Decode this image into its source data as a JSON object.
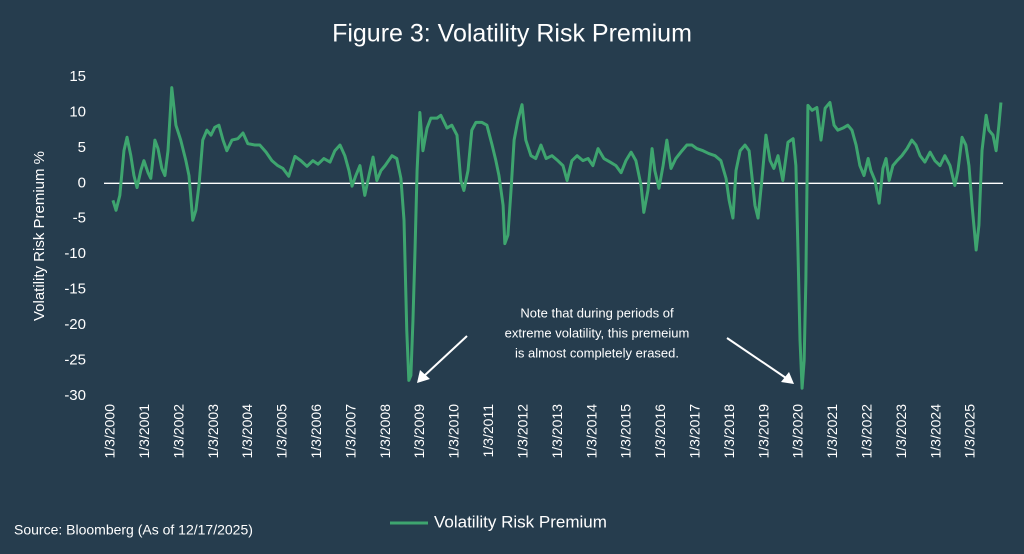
{
  "chart_data": {
    "type": "line",
    "title": "Figure 3: Volatility Risk Premium",
    "y_label": "Volatility Risk Premium %",
    "annotation": [
      "Note that during periods of",
      "extreme volatility, this premeium",
      "is almost completely erased."
    ],
    "source": "Source: Bloomberg (As of 12/17/2025)",
    "xlim": [
      1999.8,
      2025.93
    ],
    "ylim": [
      -30,
      15
    ],
    "yticks": [
      -30,
      -25,
      -20,
      -15,
      -10,
      -5,
      0,
      5,
      10,
      15
    ],
    "xticks": [
      {
        "value": 2000,
        "label": "1/3/2000"
      },
      {
        "value": 2001,
        "label": "1/3/2001"
      },
      {
        "value": 2002,
        "label": "1/3/2002"
      },
      {
        "value": 2003,
        "label": "1/3/2003"
      },
      {
        "value": 2004,
        "label": "1/3/2004"
      },
      {
        "value": 2005,
        "label": "1/3/2005"
      },
      {
        "value": 2006,
        "label": "1/3/2006"
      },
      {
        "value": 2007,
        "label": "1/3/2007"
      },
      {
        "value": 2008,
        "label": "1/3/2008"
      },
      {
        "value": 2009,
        "label": "1/3/2009"
      },
      {
        "value": 2010,
        "label": "1/3/2010"
      },
      {
        "value": 2011,
        "label": "1/3/2011"
      },
      {
        "value": 2012,
        "label": "1/3/2012"
      },
      {
        "value": 2013,
        "label": "1/3/2013"
      },
      {
        "value": 2014,
        "label": "1/3/2014"
      },
      {
        "value": 2015,
        "label": "1/3/2015"
      },
      {
        "value": 2016,
        "label": "1/3/2016"
      },
      {
        "value": 2017,
        "label": "1/3/2017"
      },
      {
        "value": 2018,
        "label": "1/3/2018"
      },
      {
        "value": 2019,
        "label": "1/3/2019"
      },
      {
        "value": 2020,
        "label": "1/3/2020"
      },
      {
        "value": 2021,
        "label": "1/3/2021"
      },
      {
        "value": 2022,
        "label": "1/3/2022"
      },
      {
        "value": 2023,
        "label": "1/3/2023"
      },
      {
        "value": 2024,
        "label": "1/3/2024"
      },
      {
        "value": 2025,
        "label": "1/3/2025"
      }
    ],
    "grid": false,
    "legend": "bottom",
    "x": [
      2000.06,
      2000.15,
      2000.26,
      2000.38,
      2000.47,
      2000.58,
      2000.67,
      2000.76,
      2000.87,
      2000.96,
      2001.08,
      2001.16,
      2001.28,
      2001.37,
      2001.48,
      2001.57,
      2001.66,
      2001.77,
      2001.89,
      2002.03,
      2002.18,
      2002.27,
      2002.38,
      2002.47,
      2002.56,
      2002.67,
      2002.79,
      2002.91,
      2003.02,
      2003.14,
      2003.26,
      2003.37,
      2003.52,
      2003.69,
      2003.84,
      2003.98,
      2004.19,
      2004.33,
      2004.51,
      2004.68,
      2004.85,
      2005.0,
      2005.17,
      2005.35,
      2005.52,
      2005.7,
      2005.87,
      2006.02,
      2006.19,
      2006.37,
      2006.51,
      2006.66,
      2006.8,
      2006.92,
      2007.01,
      2007.12,
      2007.24,
      2007.38,
      2007.5,
      2007.62,
      2007.73,
      2007.85,
      2007.97,
      2008.17,
      2008.31,
      2008.43,
      2008.52,
      2008.6,
      2008.66,
      2008.72,
      2008.78,
      2008.84,
      2008.9,
      2008.98,
      2009.07,
      2009.19,
      2009.3,
      2009.48,
      2009.59,
      2009.77,
      2009.91,
      2010.06,
      2010.17,
      2010.26,
      2010.38,
      2010.49,
      2010.61,
      2010.78,
      2010.93,
      2011.08,
      2011.19,
      2011.28,
      2011.4,
      2011.45,
      2011.54,
      2011.63,
      2011.72,
      2011.83,
      2011.95,
      2012.06,
      2012.21,
      2012.35,
      2012.5,
      2012.65,
      2012.82,
      2012.99,
      2013.14,
      2013.26,
      2013.4,
      2013.55,
      2013.72,
      2013.87,
      2014.01,
      2014.16,
      2014.33,
      2014.51,
      2014.68,
      2014.83,
      2014.97,
      2015.12,
      2015.26,
      2015.41,
      2015.49,
      2015.61,
      2015.73,
      2015.81,
      2015.93,
      2016.05,
      2016.16,
      2016.28,
      2016.42,
      2016.6,
      2016.74,
      2016.89,
      2017.03,
      2017.21,
      2017.38,
      2017.56,
      2017.73,
      2017.88,
      2017.97,
      2018.08,
      2018.17,
      2018.29,
      2018.43,
      2018.55,
      2018.63,
      2018.72,
      2018.81,
      2018.92,
      2019.04,
      2019.16,
      2019.27,
      2019.39,
      2019.53,
      2019.68,
      2019.83,
      2019.91,
      2019.97,
      2020.03,
      2020.09,
      2020.15,
      2020.2,
      2020.26,
      2020.38,
      2020.52,
      2020.64,
      2020.76,
      2020.9,
      2021.02,
      2021.13,
      2021.28,
      2021.42,
      2021.54,
      2021.66,
      2021.77,
      2021.89,
      2022.01,
      2022.09,
      2022.21,
      2022.33,
      2022.44,
      2022.53,
      2022.62,
      2022.73,
      2022.85,
      2022.99,
      2023.14,
      2023.28,
      2023.4,
      2023.52,
      2023.66,
      2023.81,
      2023.95,
      2024.1,
      2024.24,
      2024.39,
      2024.53,
      2024.62,
      2024.74,
      2024.85,
      2024.94,
      2025.03,
      2025.15,
      2025.23,
      2025.32,
      2025.44,
      2025.52,
      2025.64,
      2025.73,
      2025.81,
      2025.87
    ],
    "series": [
      {
        "name": "Volatility Risk Premium",
        "color": "#3ea56f",
        "values": [
          -2.4,
          -3.8,
          -1.7,
          4.6,
          6.5,
          3.9,
          1.1,
          -0.6,
          1.8,
          3.2,
          1.5,
          0.7,
          6.1,
          4.9,
          2.1,
          1.1,
          4.6,
          13.5,
          8.2,
          6.1,
          3.2,
          1.1,
          -5.2,
          -3.8,
          -0.3,
          6.1,
          7.5,
          6.8,
          7.9,
          8.2,
          6.1,
          4.6,
          6.1,
          6.3,
          7.1,
          5.6,
          5.4,
          5.4,
          4.4,
          3.2,
          2.5,
          2.1,
          1.0,
          3.8,
          3.2,
          2.4,
          3.2,
          2.7,
          3.5,
          3.0,
          4.6,
          5.4,
          3.9,
          1.8,
          -0.4,
          1.1,
          2.5,
          -1.7,
          1.1,
          3.7,
          0.4,
          1.8,
          2.5,
          3.9,
          3.5,
          0.7,
          -5.2,
          -20.7,
          -27.8,
          -27.1,
          -19.3,
          -9.4,
          1.8,
          10.0,
          4.6,
          7.8,
          9.2,
          9.2,
          9.6,
          7.8,
          8.2,
          6.8,
          0.4,
          -1.0,
          1.8,
          7.5,
          8.6,
          8.6,
          8.2,
          5.4,
          3.2,
          1.1,
          -3.1,
          -8.5,
          -7.3,
          -1.0,
          6.1,
          8.9,
          11.1,
          6.1,
          3.9,
          3.5,
          5.4,
          3.5,
          3.9,
          3.2,
          2.5,
          0.4,
          3.2,
          3.9,
          3.2,
          3.5,
          2.5,
          4.9,
          3.5,
          3.0,
          2.5,
          1.5,
          3.2,
          4.4,
          3.2,
          -0.3,
          -4.1,
          -1.0,
          4.9,
          1.8,
          -0.7,
          2.5,
          6.1,
          2.1,
          3.5,
          4.6,
          5.4,
          5.4,
          4.9,
          4.6,
          4.2,
          3.9,
          3.2,
          0.7,
          -2.4,
          -4.9,
          1.8,
          4.6,
          5.4,
          4.6,
          1.1,
          -3.1,
          -4.9,
          0.4,
          6.8,
          3.2,
          2.1,
          3.9,
          0.4,
          5.8,
          6.3,
          2.5,
          -9.4,
          -22.1,
          -28.9,
          -25.0,
          -13.7,
          11.0,
          10.3,
          10.7,
          6.1,
          10.6,
          11.4,
          8.2,
          7.5,
          7.8,
          8.2,
          7.5,
          5.4,
          2.5,
          1.1,
          3.5,
          1.8,
          0.4,
          -2.8,
          2.1,
          3.5,
          0.4,
          2.5,
          3.2,
          3.9,
          4.9,
          6.1,
          5.4,
          3.9,
          3.0,
          4.4,
          3.2,
          2.5,
          3.9,
          2.5,
          -0.3,
          1.8,
          6.5,
          5.4,
          2.5,
          -3.1,
          -9.4,
          -5.9,
          4.6,
          9.6,
          7.5,
          6.8,
          4.6,
          8.2,
          11.4
        ]
      }
    ]
  }
}
